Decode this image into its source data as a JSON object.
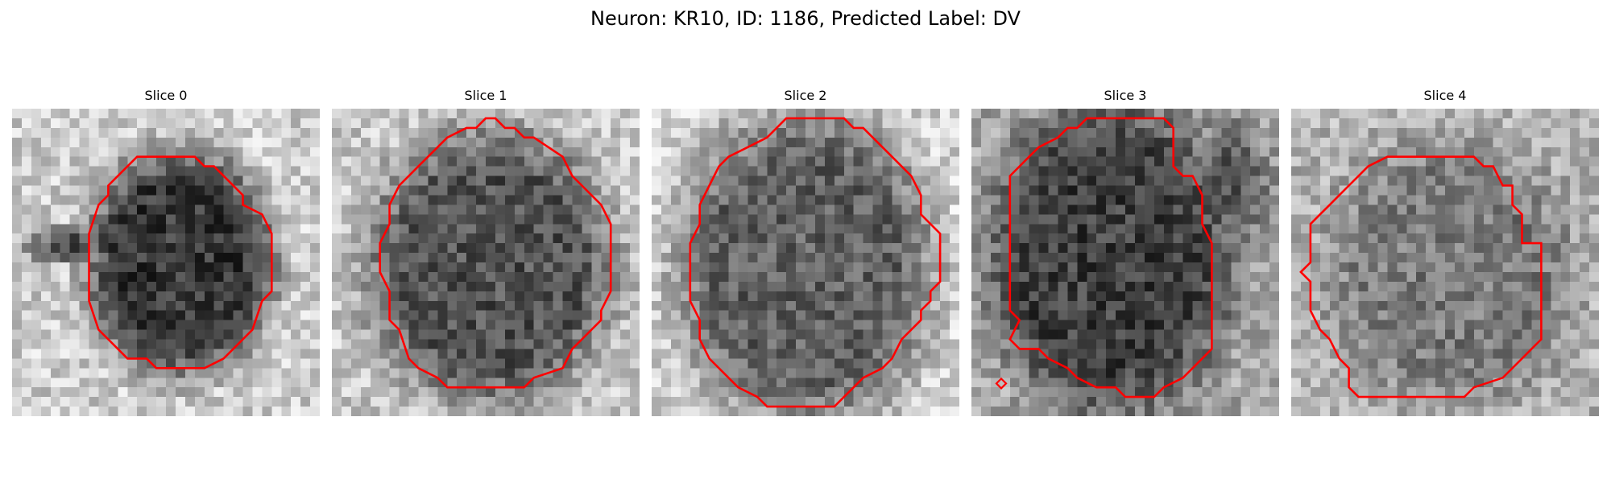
{
  "figure": {
    "title": "Neuron: KR10, ID: 1186, Predicted Label: DV"
  },
  "panels": [
    {
      "title": "Slice 0"
    },
    {
      "title": "Slice 1"
    },
    {
      "title": "Slice 2"
    },
    {
      "title": "Slice 3"
    },
    {
      "title": "Slice 4"
    }
  ],
  "colors": {
    "contour": "#ff0000",
    "background": "#ffffff"
  }
}
